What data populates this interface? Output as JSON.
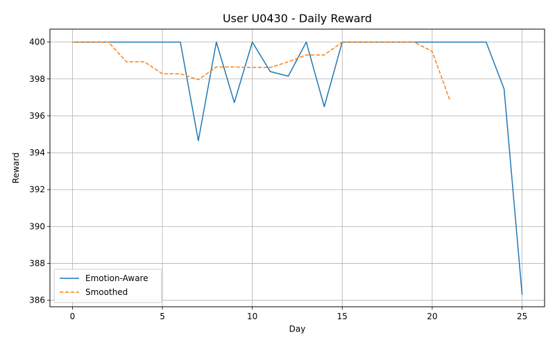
{
  "chart_data": {
    "type": "line",
    "title": "User U0430 - Daily Reward",
    "xlabel": "Day",
    "ylabel": "Reward",
    "xlim": [
      -1.25,
      26.25
    ],
    "ylim": [
      385.65,
      400.7
    ],
    "xticks": [
      0,
      5,
      10,
      15,
      20,
      25
    ],
    "yticks": [
      386,
      388,
      390,
      392,
      394,
      396,
      398,
      400
    ],
    "grid": true,
    "legend_position": "lower-left",
    "series": [
      {
        "name": "Emotion-Aware",
        "color": "#1f77b4",
        "style": "solid",
        "x": [
          0,
          1,
          2,
          3,
          4,
          5,
          6,
          7,
          8,
          9,
          10,
          11,
          12,
          13,
          14,
          15,
          16,
          17,
          18,
          19,
          20,
          21,
          22,
          23,
          24,
          25
        ],
        "y": [
          400.0,
          400.0,
          400.0,
          400.0,
          400.0,
          400.0,
          400.0,
          394.65,
          400.0,
          396.72,
          400.0,
          398.4,
          398.15,
          400.0,
          396.5,
          400.0,
          400.0,
          400.0,
          400.0,
          400.0,
          400.0,
          400.0,
          400.0,
          400.0,
          397.45,
          386.3
        ]
      },
      {
        "name": "Smoothed",
        "color": "#ff7f0e",
        "style": "dashed",
        "x": [
          0,
          1,
          2,
          3,
          4,
          5,
          6,
          7,
          8,
          9,
          10,
          11,
          12,
          13,
          14,
          15,
          16,
          17,
          18,
          19,
          20,
          21
        ],
        "y": [
          400.0,
          400.0,
          400.0,
          398.93,
          398.93,
          398.28,
          398.28,
          397.96,
          398.65,
          398.65,
          398.62,
          398.62,
          398.93,
          399.3,
          399.3,
          400.0,
          400.0,
          400.0,
          400.0,
          400.0,
          399.49,
          396.8
        ]
      }
    ]
  }
}
